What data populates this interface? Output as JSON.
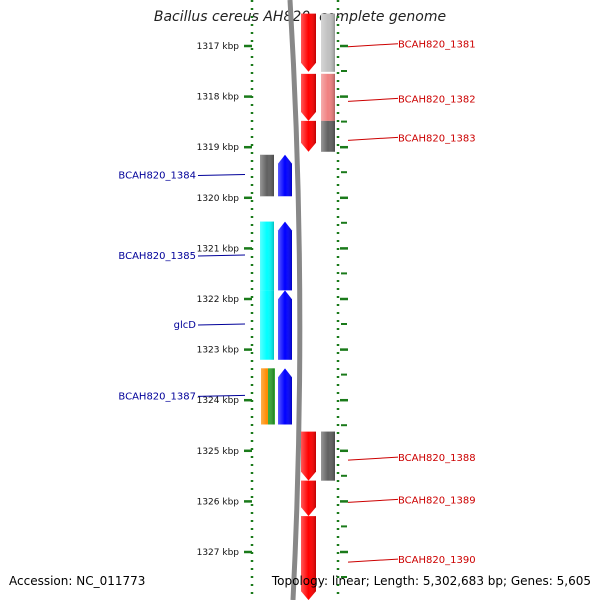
{
  "title": "Bacillus cereus AH820, complete genome",
  "footer": {
    "accession": "Accession: NC_011773",
    "summary": "Topology: linear; Length: 5,302,683 bp; Genes: 5,605"
  },
  "colors": {
    "forward_gene": "#ff0000",
    "reverse_gene": "#0000ff",
    "forward_label": "#cc0000",
    "reverse_label": "#000099",
    "ruler": "#1a7a1a",
    "backbone": "#888888"
  },
  "ticks": [
    {
      "kbp": 1317,
      "label": "1317 kbp"
    },
    {
      "kbp": 1318,
      "label": "1318 kbp"
    },
    {
      "kbp": 1319,
      "label": "1319 kbp"
    },
    {
      "kbp": 1320,
      "label": "1320 kbp"
    },
    {
      "kbp": 1321,
      "label": "1321 kbp"
    },
    {
      "kbp": 1322,
      "label": "1322 kbp"
    },
    {
      "kbp": 1323,
      "label": "1323 kbp"
    },
    {
      "kbp": 1324,
      "label": "1324 kbp"
    },
    {
      "kbp": 1325,
      "label": "1325 kbp"
    },
    {
      "kbp": 1326,
      "label": "1326 kbp"
    },
    {
      "kbp": 1327,
      "label": "1327 kbp"
    }
  ],
  "forward_genes": [
    {
      "label": "BCAH820_1381",
      "start_kbp": 1316.36,
      "end_kbp": 1317.51,
      "feature_color": "#c0c0c0"
    },
    {
      "label": "BCAH820_1382",
      "start_kbp": 1317.55,
      "end_kbp": 1318.48,
      "feature_color": "#f08080"
    },
    {
      "label": "BCAH820_1383",
      "start_kbp": 1318.48,
      "end_kbp": 1319.09,
      "feature_color": "#606060"
    },
    {
      "label": "BCAH820_1388",
      "start_kbp": 1324.62,
      "end_kbp": 1325.59,
      "feature_color": "#606060"
    },
    {
      "label": "BCAH820_1389",
      "start_kbp": 1325.59,
      "end_kbp": 1326.29,
      "feature_color": ""
    },
    {
      "label": "BCAH820_1390",
      "start_kbp": 1326.29,
      "end_kbp": 1327.95,
      "feature_color": ""
    }
  ],
  "reverse_genes": [
    {
      "label": "BCAH820_1384",
      "start_kbp": 1319.15,
      "end_kbp": 1319.97,
      "feature_color": "#606060",
      "feature_color2": ""
    },
    {
      "label": "BCAH820_1385",
      "start_kbp": 1320.47,
      "end_kbp": 1321.83,
      "feature_color": "#00ffff",
      "feature_color2": ""
    },
    {
      "label": "glcD",
      "start_kbp": 1321.83,
      "end_kbp": 1323.2,
      "feature_color": "#00ffff",
      "feature_color2": ""
    },
    {
      "label": "BCAH820_1387",
      "start_kbp": 1323.37,
      "end_kbp": 1324.48,
      "feature_color": "#ff8c00",
      "feature_color2": "#33aa33"
    }
  ]
}
